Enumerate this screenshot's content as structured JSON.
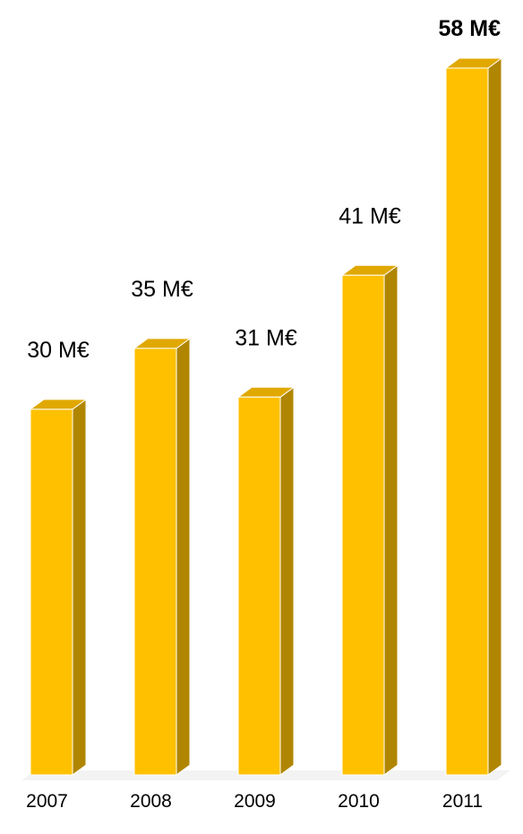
{
  "chart_data": {
    "type": "bar",
    "style": "3d",
    "categories": [
      "2007",
      "2008",
      "2009",
      "2010",
      "2011"
    ],
    "values": [
      30,
      35,
      31,
      41,
      58
    ],
    "value_labels": [
      "30 M€",
      "35 M€",
      "31 M€",
      "41 M€",
      "58 M€"
    ],
    "highlight_bold_index": 4,
    "unit": "M€",
    "title": "",
    "xlabel": "",
    "ylabel": "",
    "ylim": [
      0,
      58
    ],
    "grid": false,
    "legend": "none",
    "colors": {
      "front": "#FFC000",
      "top": "#E0A800",
      "side": "#B08600",
      "edge": "#FFFFFF"
    }
  }
}
